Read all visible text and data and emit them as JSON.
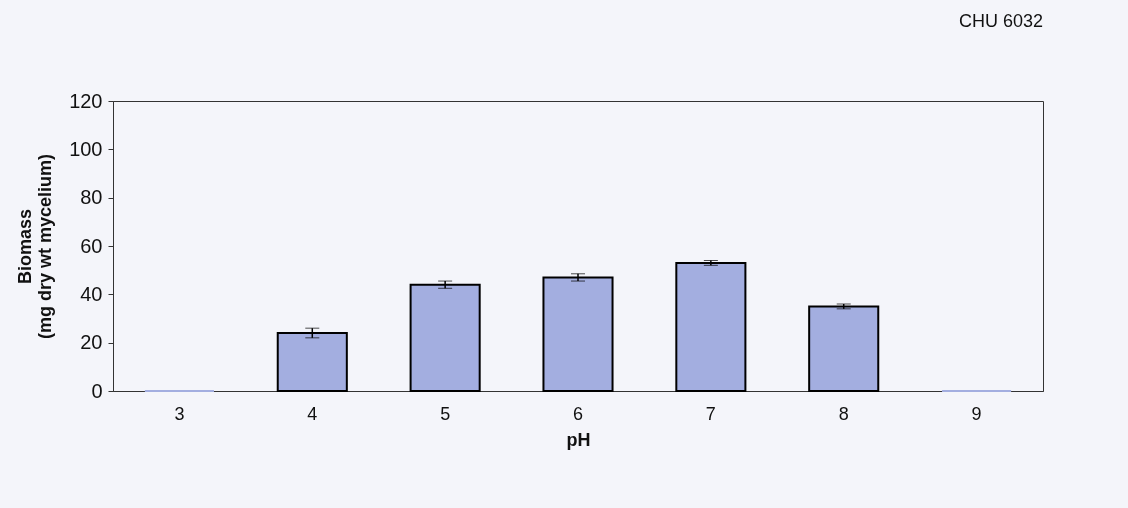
{
  "chart_data": {
    "type": "bar",
    "title": "CHU 6032",
    "xlabel": "pH",
    "ylabel": "Biomass\n(mg dry wt mycelium)",
    "categories": [
      "3",
      "4",
      "5",
      "6",
      "7",
      "8",
      "9"
    ],
    "values": [
      0,
      24,
      44,
      47,
      53,
      35,
      0
    ],
    "errors": [
      null,
      2,
      1.5,
      1.5,
      1,
      1,
      null
    ],
    "color": "#a3aee0",
    "ylim": [
      0,
      120
    ],
    "yticks": [
      0,
      20,
      40,
      60,
      80,
      100,
      120
    ],
    "grid": false
  }
}
